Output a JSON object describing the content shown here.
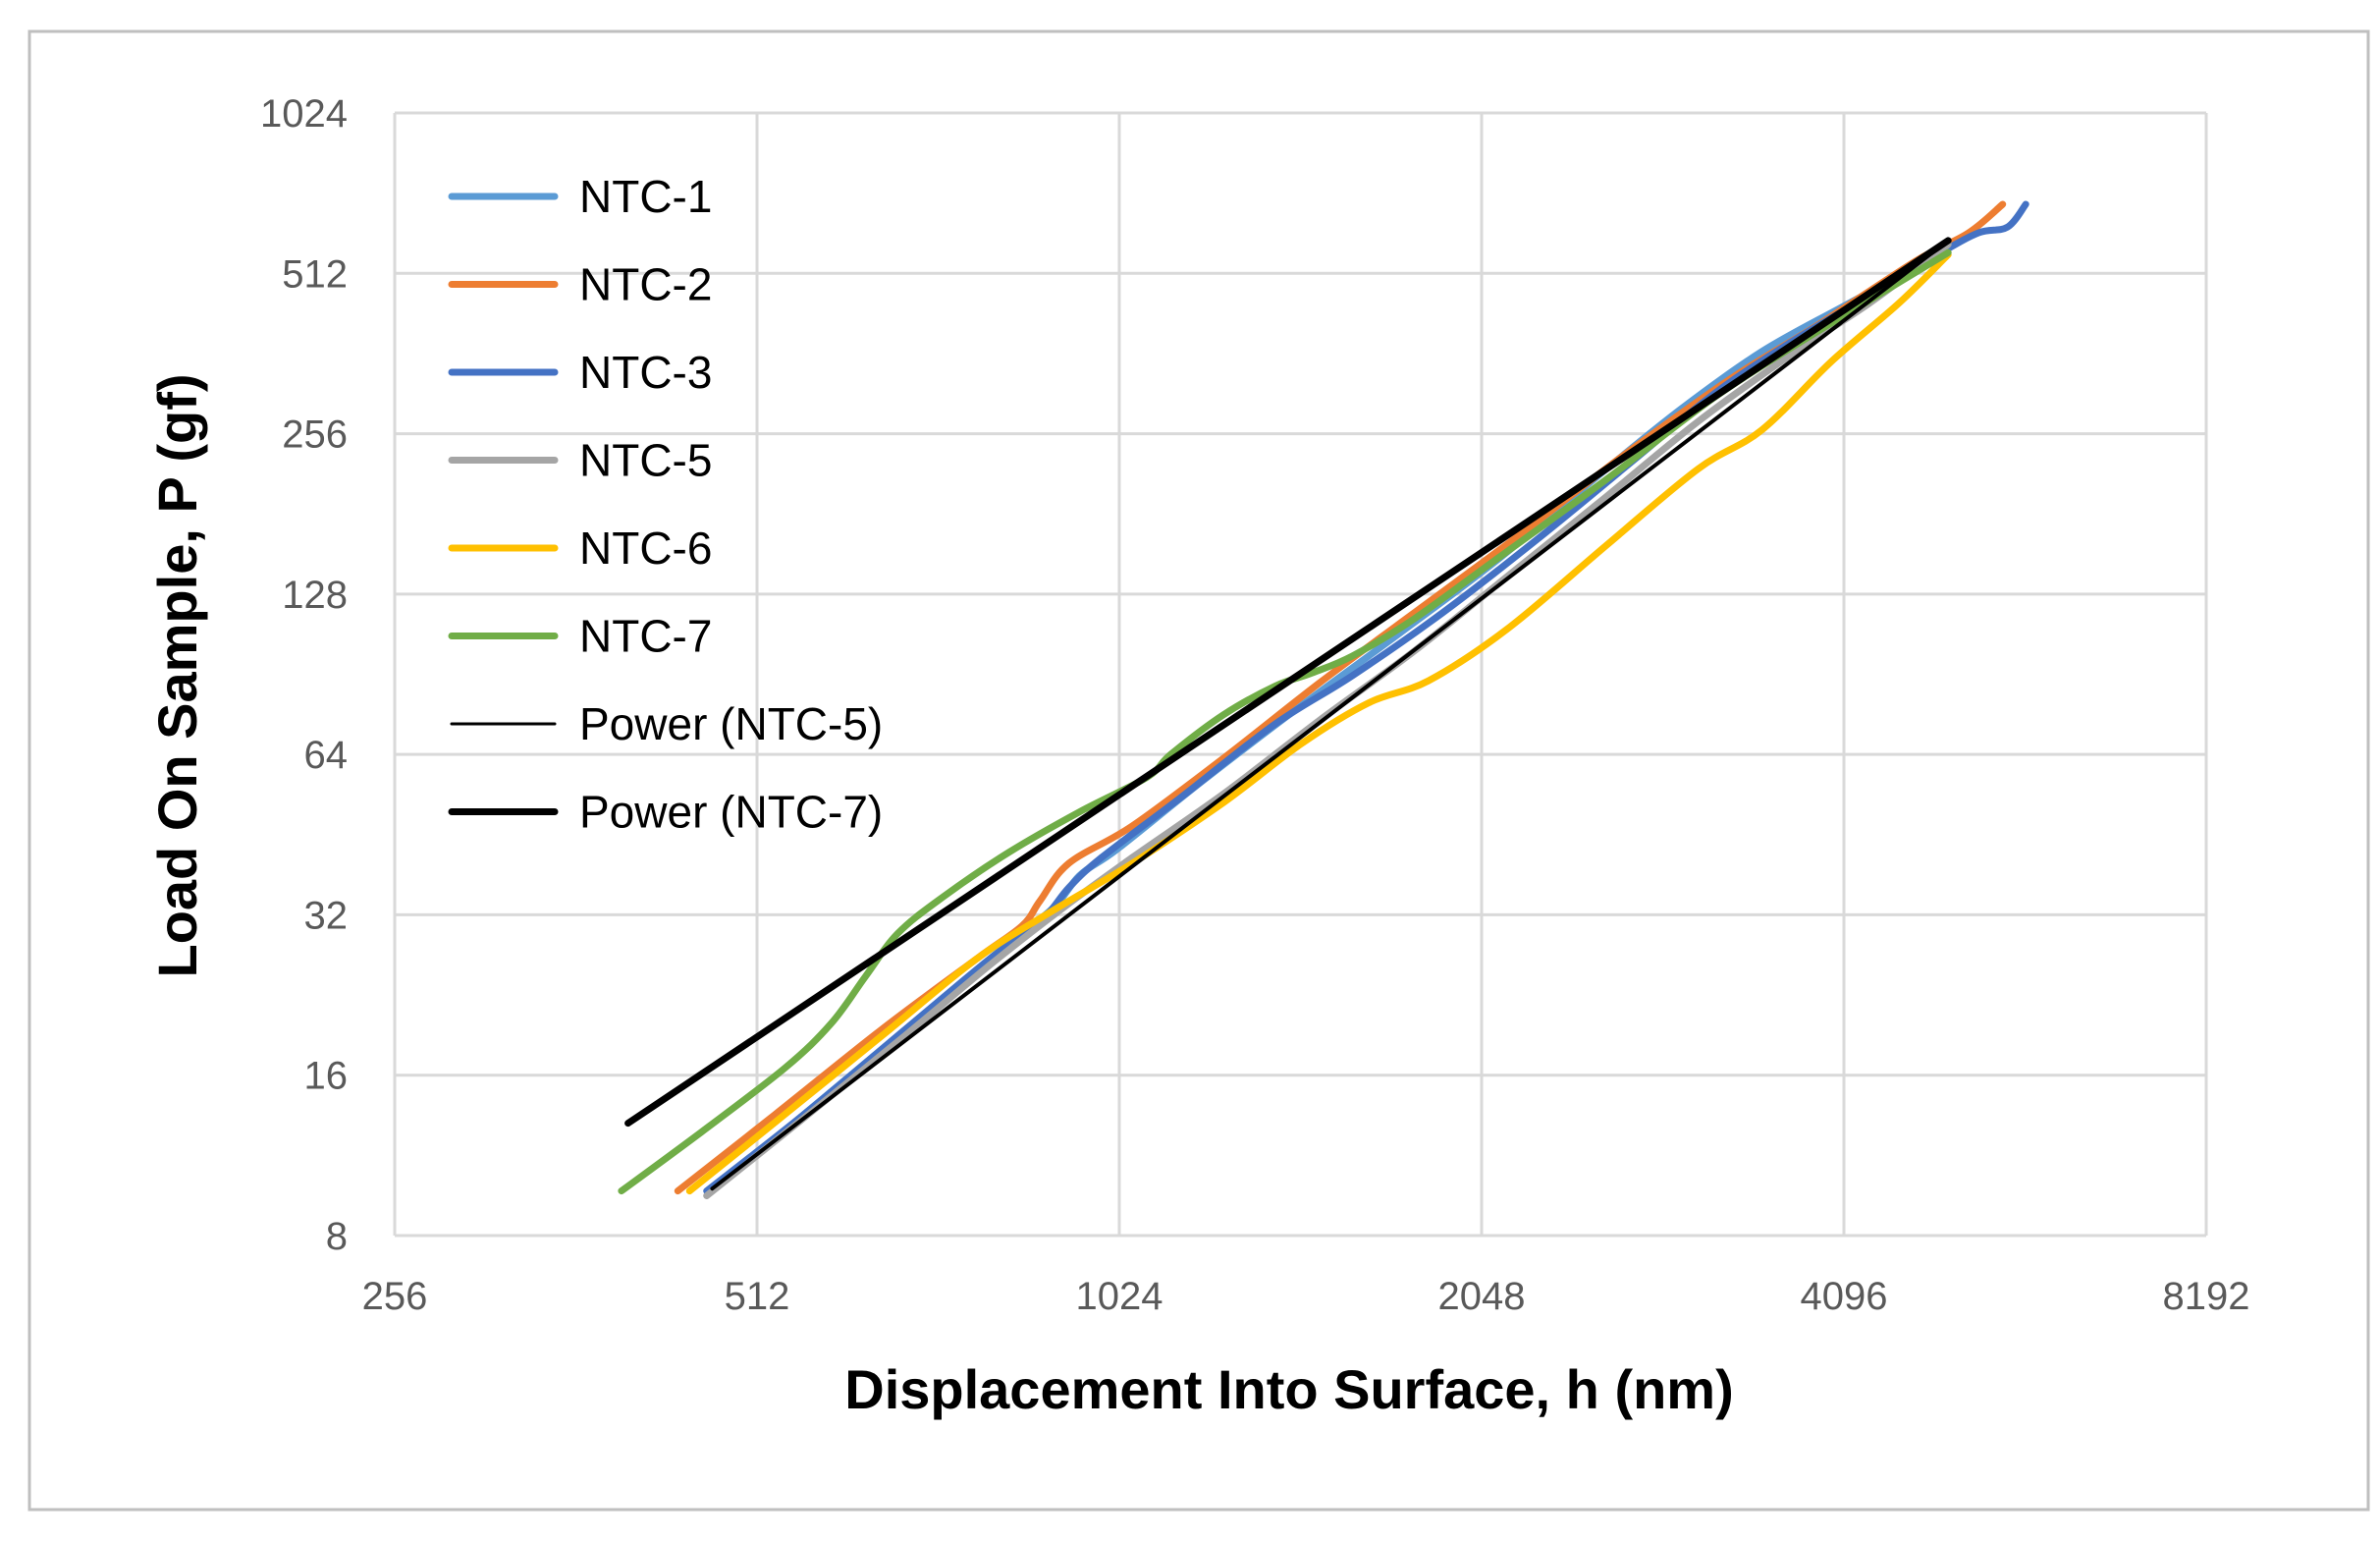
{
  "chart_data": {
    "type": "line",
    "title": "",
    "xlabel": "Displacement Into Surface, h (nm)",
    "ylabel": "Load On Sample, P (gf)",
    "xscale": "log2",
    "yscale": "log2",
    "xlim": [
      256,
      8192
    ],
    "ylim": [
      8,
      1024
    ],
    "xticks": [
      "256",
      "512",
      "1024",
      "2048",
      "4096",
      "8192"
    ],
    "yticks": [
      "8",
      "16",
      "32",
      "64",
      "128",
      "256",
      "512",
      "1024"
    ],
    "grid": true,
    "legend_position": "top-left",
    "series": [
      {
        "name": "NTC-1",
        "color": "#5B9BD5",
        "style": "thick",
        "points": [
          [
            470,
            9.7
          ],
          [
            560,
            13.5
          ],
          [
            680,
            19.5
          ],
          [
            800,
            26.5
          ],
          [
            900,
            32.8
          ],
          [
            950,
            38
          ],
          [
            1020,
            42.5
          ],
          [
            1200,
            57
          ],
          [
            1450,
            79
          ],
          [
            1750,
            108
          ],
          [
            2100,
            147
          ],
          [
            2550,
            212
          ],
          [
            3000,
            285
          ],
          [
            3500,
            365
          ],
          [
            4100,
            445
          ],
          [
            4800,
            540
          ],
          [
            5100,
            592
          ]
        ]
      },
      {
        "name": "NTC-2",
        "color": "#ED7D31",
        "style": "thick",
        "points": [
          [
            440,
            9.7
          ],
          [
            530,
            13.5
          ],
          [
            650,
            19.5
          ],
          [
            780,
            26.5
          ],
          [
            850,
            30.5
          ],
          [
            880,
            34
          ],
          [
            930,
            40
          ],
          [
            1050,
            47
          ],
          [
            1250,
            63
          ],
          [
            1500,
            87
          ],
          [
            1800,
            118
          ],
          [
            2200,
            165
          ],
          [
            2700,
            235
          ],
          [
            3300,
            325
          ],
          [
            3900,
            410
          ],
          [
            4700,
            540
          ],
          [
            5200,
            610
          ],
          [
            5550,
            690
          ]
        ]
      },
      {
        "name": "NTC-3",
        "color": "#4472C4",
        "style": "thick",
        "points": [
          [
            465,
            9.7
          ],
          [
            560,
            13.5
          ],
          [
            680,
            19.5
          ],
          [
            800,
            26.5
          ],
          [
            880,
            31
          ],
          [
            930,
            36
          ],
          [
            990,
            41
          ],
          [
            1150,
            53
          ],
          [
            1380,
            73
          ],
          [
            1600,
            90
          ],
          [
            1900,
            118
          ],
          [
            2300,
            165
          ],
          [
            2750,
            230
          ],
          [
            3200,
            305
          ],
          [
            3700,
            380
          ],
          [
            4300,
            465
          ],
          [
            4900,
            555
          ],
          [
            5300,
            610
          ],
          [
            5600,
            625
          ],
          [
            5800,
            690
          ]
        ]
      },
      {
        "name": "NTC-5",
        "color": "#A5A5A5",
        "style": "thick",
        "points": [
          [
            465,
            9.5
          ],
          [
            560,
            13.3
          ],
          [
            680,
            19
          ],
          [
            800,
            25.8
          ],
          [
            920,
            33
          ],
          [
            1050,
            41
          ],
          [
            1250,
            54
          ],
          [
            1500,
            74
          ],
          [
            1800,
            100
          ],
          [
            2150,
            138
          ],
          [
            2600,
            195
          ],
          [
            3100,
            270
          ],
          [
            3700,
            360
          ],
          [
            4300,
            450
          ],
          [
            5000,
            580
          ]
        ]
      },
      {
        "name": "NTC-6",
        "color": "#FFC000",
        "style": "thick",
        "points": [
          [
            450,
            9.7
          ],
          [
            540,
            13.5
          ],
          [
            660,
            19.5
          ],
          [
            780,
            26.5
          ],
          [
            900,
            32.5
          ],
          [
            1050,
            40
          ],
          [
            1250,
            52
          ],
          [
            1450,
            67
          ],
          [
            1650,
            80
          ],
          [
            1850,
            88
          ],
          [
            2150,
            110
          ],
          [
            2600,
            158
          ],
          [
            3100,
            220
          ],
          [
            3500,
            260
          ],
          [
            4000,
            350
          ],
          [
            4550,
            450
          ],
          [
            5000,
            555
          ]
        ]
      },
      {
        "name": "NTC-7",
        "color": "#70AD47",
        "style": "thick",
        "points": [
          [
            395,
            9.7
          ],
          [
            460,
            12.5
          ],
          [
            540,
            16.5
          ],
          [
            590,
            20
          ],
          [
            630,
            24.5
          ],
          [
            670,
            29.5
          ],
          [
            730,
            34.5
          ],
          [
            830,
            42
          ],
          [
            950,
            50
          ],
          [
            1080,
            58
          ],
          [
            1130,
            64
          ],
          [
            1250,
            76
          ],
          [
            1380,
            86
          ],
          [
            1480,
            91
          ],
          [
            1600,
            98
          ],
          [
            1800,
            115
          ],
          [
            2100,
            148
          ],
          [
            2600,
            210
          ],
          [
            3200,
            300
          ],
          [
            3800,
            385
          ],
          [
            4400,
            470
          ],
          [
            5000,
            560
          ]
        ]
      },
      {
        "name": "Power (NTC-5)",
        "color": "#000000",
        "style": "thin",
        "points": [
          [
            470,
            9.8
          ],
          [
            5000,
            590
          ]
        ]
      },
      {
        "name": "Power (NTC-7)",
        "color": "#000000",
        "style": "thick",
        "points": [
          [
            400,
            13
          ],
          [
            5000,
            590
          ]
        ]
      }
    ]
  }
}
